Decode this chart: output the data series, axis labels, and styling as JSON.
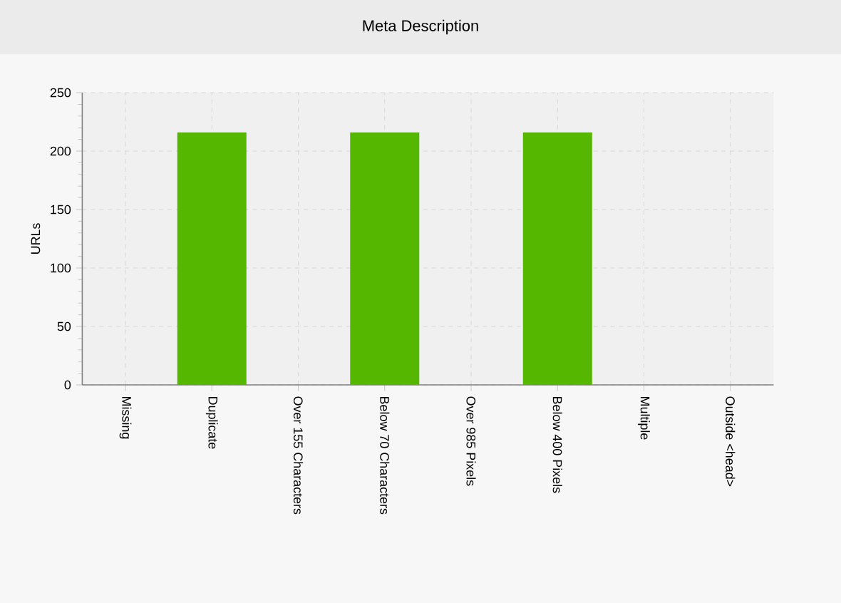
{
  "chart_data": {
    "type": "bar",
    "title": "Meta Description",
    "ylabel": "URLs",
    "categories": [
      "Missing",
      "Duplicate",
      "Over 155 Characters",
      "Below 70 Characters",
      "Over 985 Pixels",
      "Below 400 Pixels",
      "Multiple",
      "Outside <head>"
    ],
    "values": [
      0,
      216,
      0,
      216,
      0,
      216,
      0,
      0
    ],
    "color": "#56b700",
    "ylim": [
      0,
      250
    ],
    "yticks": [
      0,
      50,
      100,
      150,
      200,
      250
    ],
    "grid": true
  }
}
